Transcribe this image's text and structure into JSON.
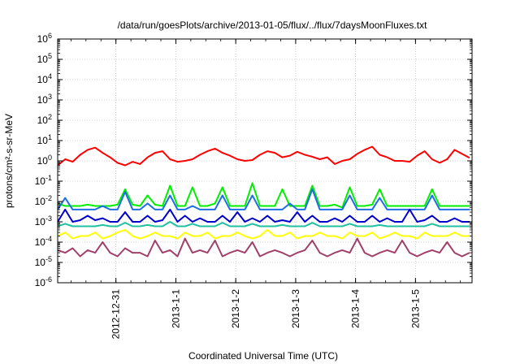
{
  "chart_data": {
    "type": "line",
    "title": "/data/run/goesPlots/archive/2013-01-05/flux/../flux/7daysMoonFluxes.txt",
    "xlabel": "Coordinated Universal Time (UTC)",
    "ylabel": "protons/cm²-s-sr-MeV",
    "yscale": "log",
    "ylim": [
      1e-06,
      1000000.0
    ],
    "ytick_labels": [
      {
        "base": "10",
        "exp": "-6"
      },
      {
        "base": "10",
        "exp": "-5"
      },
      {
        "base": "10",
        "exp": "-4"
      },
      {
        "base": "10",
        "exp": "-3"
      },
      {
        "base": "10",
        "exp": "-2"
      },
      {
        "base": "10",
        "exp": "-1"
      },
      {
        "base": "10",
        "exp": "0"
      },
      {
        "base": "10",
        "exp": "1"
      },
      {
        "base": "10",
        "exp": "2"
      },
      {
        "base": "10",
        "exp": "3"
      },
      {
        "base": "10",
        "exp": "4"
      },
      {
        "base": "10",
        "exp": "5"
      },
      {
        "base": "10",
        "exp": "6"
      }
    ],
    "xlim": [
      "2012-12-30 00:40",
      "2013-01-05 22:40"
    ],
    "xtick_labels": [
      "2012-12-31",
      "2013-1-1",
      "2013-1-2",
      "2013-1-3",
      "2013-1-4",
      "2013-1-5"
    ],
    "xtick_dates": [
      "2012-12-31",
      "2013-01-01",
      "2013-01-02",
      "2013-01-03",
      "2013-01-04",
      "2013-01-05"
    ],
    "grid": true,
    "x": [
      "2012-12-30 00:40",
      "2012-12-30 03:40",
      "2012-12-30 06:40",
      "2012-12-30 09:40",
      "2012-12-30 12:40",
      "2012-12-30 15:40",
      "2012-12-30 18:40",
      "2012-12-30 21:40",
      "2012-12-31 00:40",
      "2012-12-31 03:40",
      "2012-12-31 06:40",
      "2012-12-31 09:40",
      "2012-12-31 12:40",
      "2012-12-31 15:40",
      "2012-12-31 18:40",
      "2012-12-31 21:40",
      "2013-01-01 00:40",
      "2013-01-01 03:40",
      "2013-01-01 06:40",
      "2013-01-01 09:40",
      "2013-01-01 12:40",
      "2013-01-01 15:40",
      "2013-01-01 18:40",
      "2013-01-01 21:40",
      "2013-01-02 00:40",
      "2013-01-02 03:40",
      "2013-01-02 06:40",
      "2013-01-02 09:40",
      "2013-01-02 12:40",
      "2013-01-02 15:40",
      "2013-01-02 18:40",
      "2013-01-02 21:40",
      "2013-01-03 00:40",
      "2013-01-03 03:40",
      "2013-01-03 06:40",
      "2013-01-03 09:40",
      "2013-01-03 12:40",
      "2013-01-03 15:40",
      "2013-01-03 18:40",
      "2013-01-03 21:40",
      "2013-01-04 00:40",
      "2013-01-04 03:40",
      "2013-01-04 06:40",
      "2013-01-04 09:40",
      "2013-01-04 12:40",
      "2013-01-04 15:40",
      "2013-01-04 18:40",
      "2013-01-04 21:40",
      "2013-01-05 00:40",
      "2013-01-05 03:40",
      "2013-01-05 06:40",
      "2013-01-05 09:40",
      "2013-01-05 12:40",
      "2013-01-05 15:40",
      "2013-01-05 18:40",
      "2013-01-05 21:40"
    ],
    "series": [
      {
        "color": "#ff0000",
        "values": [
          0.6,
          1.2,
          0.9,
          2,
          3.5,
          4.5,
          2.5,
          1.5,
          0.8,
          0.6,
          0.9,
          0.7,
          1.5,
          2.5,
          3,
          1.2,
          0.9,
          1,
          1.2,
          2,
          3,
          4,
          2.5,
          1.8,
          1.2,
          1,
          1.1,
          2,
          3,
          2.5,
          1.5,
          1.8,
          2.8,
          2,
          1.6,
          1.2,
          1.5,
          0.7,
          1,
          1.2,
          2.2,
          3.5,
          5,
          2,
          1.5,
          1,
          1,
          0.9,
          1.8,
          3,
          1.2,
          0.8,
          1.2,
          3.5,
          2.2,
          1.4
        ]
      },
      {
        "color": "#00ee00",
        "values": [
          0.008,
          0.006,
          0.006,
          0.006,
          0.007,
          0.006,
          0.006,
          0.006,
          0.007,
          0.04,
          0.007,
          0.006,
          0.02,
          0.007,
          0.006,
          0.06,
          0.006,
          0.006,
          0.05,
          0.006,
          0.006,
          0.008,
          0.05,
          0.006,
          0.006,
          0.006,
          0.08,
          0.006,
          0.006,
          0.006,
          0.04,
          0.006,
          0.006,
          0.006,
          0.06,
          0.006,
          0.006,
          0.007,
          0.005,
          0.05,
          0.006,
          0.006,
          0.007,
          0.04,
          0.006,
          0.006,
          0.006,
          0.006,
          0.006,
          0.006,
          0.04,
          0.006,
          0.006,
          0.006,
          0.006,
          0.006
        ]
      },
      {
        "color": "#1e6ee6",
        "values": [
          0.004,
          0.015,
          0.004,
          0.004,
          0.004,
          0.004,
          0.006,
          0.004,
          0.004,
          0.03,
          0.004,
          0.004,
          0.008,
          0.004,
          0.004,
          0.02,
          0.004,
          0.004,
          0.006,
          0.004,
          0.004,
          0.004,
          0.02,
          0.004,
          0.004,
          0.004,
          0.02,
          0.004,
          0.004,
          0.004,
          0.004,
          0.008,
          0.004,
          0.004,
          0.04,
          0.004,
          0.004,
          0.004,
          0.004,
          0.02,
          0.004,
          0.004,
          0.004,
          0.015,
          0.004,
          0.004,
          0.004,
          0.004,
          0.004,
          0.004,
          0.02,
          0.004,
          0.004,
          0.004,
          0.004,
          0.004
        ]
      },
      {
        "color": "#0000cc",
        "values": [
          0.001,
          0.004,
          0.001,
          0.0012,
          0.002,
          0.0012,
          0.0015,
          0.001,
          0.001,
          0.003,
          0.001,
          0.001,
          0.002,
          0.001,
          0.0012,
          0.004,
          0.001,
          0.002,
          0.001,
          0.0015,
          0.001,
          0.001,
          0.002,
          0.001,
          0.003,
          0.001,
          0.0015,
          0.001,
          0.002,
          0.001,
          0.0012,
          0.001,
          0.003,
          0.001,
          0.002,
          0.001,
          0.001,
          0.0015,
          0.001,
          0.002,
          0.001,
          0.001,
          0.002,
          0.001,
          0.0015,
          0.001,
          0.001,
          0.004,
          0.001,
          0.0012,
          0.002,
          0.001,
          0.001,
          0.0015,
          0.001,
          0.001
        ]
      },
      {
        "color": "#20c0a0",
        "values": [
          0.0006,
          0.0008,
          0.0006,
          0.0006,
          0.0006,
          0.0006,
          0.0007,
          0.0006,
          0.0006,
          0.0009,
          0.0006,
          0.0006,
          0.0007,
          0.0006,
          0.0006,
          0.001,
          0.0006,
          0.0006,
          0.0008,
          0.0006,
          0.0006,
          0.0006,
          0.0009,
          0.0006,
          0.0006,
          0.0006,
          0.0008,
          0.0006,
          0.0006,
          0.0006,
          0.0007,
          0.0006,
          0.0006,
          0.0006,
          0.0009,
          0.0006,
          0.0006,
          0.0006,
          0.0006,
          0.0008,
          0.0006,
          0.0006,
          0.0006,
          0.0007,
          0.0006,
          0.0006,
          0.0006,
          0.0006,
          0.0006,
          0.0006,
          0.0008,
          0.0006,
          0.0006,
          0.0006,
          0.0006,
          0.0006
        ]
      },
      {
        "color": "#ffff00",
        "values": [
          0.0002,
          0.0003,
          0.00015,
          0.0002,
          0.0002,
          0.0003,
          0.00015,
          0.0002,
          0.0003,
          0.0004,
          0.0002,
          0.00015,
          0.0002,
          0.0003,
          0.0002,
          0.0002,
          0.00015,
          0.0003,
          0.0002,
          0.0002,
          0.0003,
          0.00015,
          0.0002,
          0.0002,
          0.0003,
          0.0002,
          0.00015,
          0.0002,
          0.0004,
          0.0002,
          0.0002,
          0.0003,
          0.00015,
          0.0002,
          0.0002,
          0.0003,
          0.0002,
          0.0002,
          0.00015,
          0.0003,
          0.0002,
          0.0002,
          0.0003,
          0.00015,
          0.0002,
          0.0003,
          0.0002,
          0.0002,
          0.00015,
          0.0003,
          0.0002,
          0.0002,
          0.0002,
          0.0003,
          0.0002,
          0.0002
        ]
      },
      {
        "color": "#a0406a",
        "values": [
          4e-05,
          3e-05,
          5e-05,
          2e-05,
          4e-05,
          3e-05,
          0.0001,
          3e-05,
          2e-05,
          5e-05,
          3e-05,
          3e-05,
          2e-05,
          0.00012,
          3e-05,
          4e-05,
          2e-05,
          0.00015,
          3e-05,
          4e-05,
          3e-05,
          0.00012,
          2e-05,
          3e-05,
          4e-05,
          3e-05,
          0.0001,
          2e-05,
          3e-05,
          4e-05,
          3e-05,
          2e-05,
          3e-05,
          4e-05,
          0.00012,
          3e-05,
          2e-05,
          3e-05,
          4e-05,
          3e-05,
          0.00015,
          3e-05,
          2e-05,
          3e-05,
          4e-05,
          3e-05,
          0.00012,
          3e-05,
          2e-05,
          3e-05,
          4e-05,
          3e-05,
          0.0001,
          3e-05,
          2e-05,
          3e-05
        ]
      }
    ]
  }
}
